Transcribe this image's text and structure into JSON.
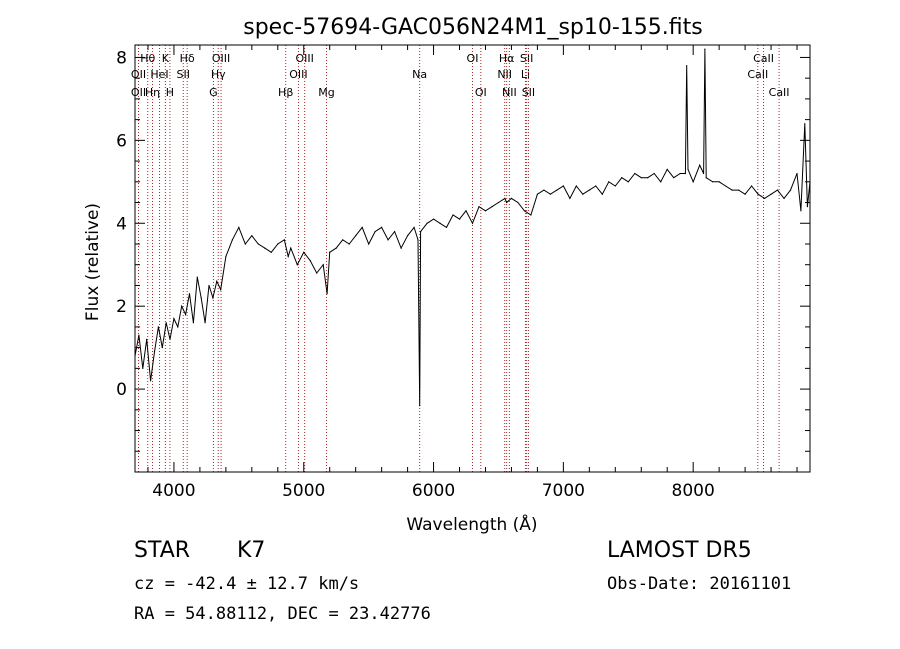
{
  "chart_data": {
    "type": "line",
    "title": "spec-57694-GAC056N24M1_sp10-155.fits",
    "xlabel": "Wavelength (Å)",
    "ylabel": "Flux (relative)",
    "xlim": [
      3700,
      8900
    ],
    "ylim": [
      -2.0,
      8.3
    ],
    "x_ticks": [
      4000,
      5000,
      6000,
      7000,
      8000
    ],
    "y_ticks": [
      0,
      2,
      4,
      6,
      8
    ],
    "grid": false,
    "series": [
      {
        "color": "#000000",
        "x": [
          3700,
          3730,
          3760,
          3790,
          3820,
          3850,
          3880,
          3910,
          3940,
          3970,
          4000,
          4030,
          4060,
          4090,
          4120,
          4150,
          4180,
          4210,
          4240,
          4270,
          4300,
          4330,
          4360,
          4400,
          4450,
          4500,
          4550,
          4600,
          4650,
          4700,
          4750,
          4800,
          4850,
          4880,
          4900,
          4950,
          5000,
          5050,
          5100,
          5150,
          5180,
          5200,
          5250,
          5300,
          5350,
          5400,
          5450,
          5500,
          5550,
          5600,
          5650,
          5700,
          5750,
          5800,
          5850,
          5880,
          5893,
          5900,
          5950,
          6000,
          6050,
          6100,
          6150,
          6200,
          6250,
          6300,
          6350,
          6400,
          6450,
          6500,
          6550,
          6563,
          6600,
          6650,
          6700,
          6750,
          6800,
          6850,
          6900,
          6950,
          7000,
          7050,
          7100,
          7150,
          7200,
          7250,
          7300,
          7350,
          7400,
          7450,
          7500,
          7550,
          7600,
          7650,
          7700,
          7750,
          7800,
          7850,
          7900,
          7940,
          7950,
          7960,
          8000,
          8050,
          8080,
          8090,
          8100,
          8150,
          8200,
          8250,
          8300,
          8350,
          8400,
          8450,
          8500,
          8550,
          8600,
          8650,
          8700,
          8750,
          8800,
          8830,
          8860,
          8880,
          8900
        ],
        "y": [
          0.8,
          1.3,
          0.5,
          1.2,
          0.2,
          0.9,
          1.5,
          1.0,
          1.6,
          1.2,
          1.7,
          1.5,
          2.0,
          1.8,
          2.3,
          1.6,
          2.7,
          2.2,
          1.6,
          2.5,
          2.2,
          2.6,
          2.4,
          3.2,
          3.6,
          3.9,
          3.5,
          3.7,
          3.5,
          3.4,
          3.3,
          3.5,
          3.6,
          3.2,
          3.4,
          3.0,
          3.3,
          3.1,
          2.8,
          3.0,
          2.3,
          3.3,
          3.4,
          3.6,
          3.5,
          3.7,
          3.9,
          3.5,
          3.8,
          3.9,
          3.6,
          3.8,
          3.4,
          3.7,
          3.9,
          3.6,
          -0.4,
          3.8,
          4.0,
          4.1,
          4.0,
          3.9,
          4.2,
          4.1,
          4.3,
          4.0,
          4.4,
          4.3,
          4.4,
          4.5,
          4.6,
          4.5,
          4.6,
          4.5,
          4.3,
          4.2,
          4.7,
          4.8,
          4.7,
          4.8,
          4.9,
          4.6,
          4.9,
          4.7,
          4.8,
          4.9,
          4.7,
          5.0,
          4.9,
          5.1,
          5.0,
          5.2,
          5.1,
          5.1,
          5.2,
          5.0,
          5.3,
          5.1,
          5.2,
          5.2,
          7.8,
          5.3,
          5.0,
          5.4,
          5.2,
          8.2,
          5.1,
          5.0,
          5.0,
          4.9,
          4.8,
          4.8,
          4.7,
          4.9,
          4.7,
          4.6,
          4.7,
          4.8,
          4.6,
          4.8,
          5.2,
          4.3,
          6.4,
          4.4,
          5.0
        ]
      }
    ],
    "lines": [
      {
        "label": "Hθ",
        "x": 3798,
        "row": 1
      },
      {
        "label": "OII",
        "x": 3727,
        "row": 2
      },
      {
        "label": "OII",
        "x": 3727,
        "row": 3
      },
      {
        "label": "K",
        "x": 3934,
        "row": 1
      },
      {
        "label": "Hη",
        "x": 3835,
        "row": 3
      },
      {
        "label": "HeI",
        "x": 3889,
        "row": 2
      },
      {
        "label": "H",
        "x": 3969,
        "row": 3
      },
      {
        "label": "Hδ",
        "x": 4102,
        "row": 1
      },
      {
        "label": "SII",
        "x": 4072,
        "row": 2
      },
      {
        "label": "OIII",
        "x": 4363,
        "row": 1
      },
      {
        "label": "Hγ",
        "x": 4341,
        "row": 2
      },
      {
        "label": "G",
        "x": 4304,
        "row": 3
      },
      {
        "label": "OIII",
        "x": 5007,
        "row": 1
      },
      {
        "label": "OIII",
        "x": 4959,
        "row": 2
      },
      {
        "label": "Hβ",
        "x": 4861,
        "row": 3
      },
      {
        "label": "Mg",
        "x": 5175,
        "row": 3
      },
      {
        "label": "Na",
        "x": 5893,
        "row": 2
      },
      {
        "label": "OI",
        "x": 6300,
        "row": 1
      },
      {
        "label": "OI",
        "x": 6364,
        "row": 3
      },
      {
        "label": "Hα",
        "x": 6563,
        "row": 1
      },
      {
        "label": "NII",
        "x": 6548,
        "row": 2
      },
      {
        "label": "NII",
        "x": 6584,
        "row": 3
      },
      {
        "label": "SII",
        "x": 6717,
        "row": 1
      },
      {
        "label": "Li",
        "x": 6708,
        "row": 2
      },
      {
        "label": "SII",
        "x": 6731,
        "row": 3
      },
      {
        "label": "CaII",
        "x": 8542,
        "row": 1
      },
      {
        "label": "CaII",
        "x": 8498,
        "row": 2
      },
      {
        "label": "CaII",
        "x": 8662,
        "row": 3
      }
    ],
    "line_color": "#a52a2a"
  },
  "info": {
    "obj_class": "STAR",
    "obj_subclass": "K7",
    "survey": "LAMOST  DR5",
    "cz": "cz = -42.4 ± 12.7 km/s",
    "obs_date": "Obs-Date: 20161101",
    "radec": "RA =  54.88112, DEC =  23.42776"
  }
}
